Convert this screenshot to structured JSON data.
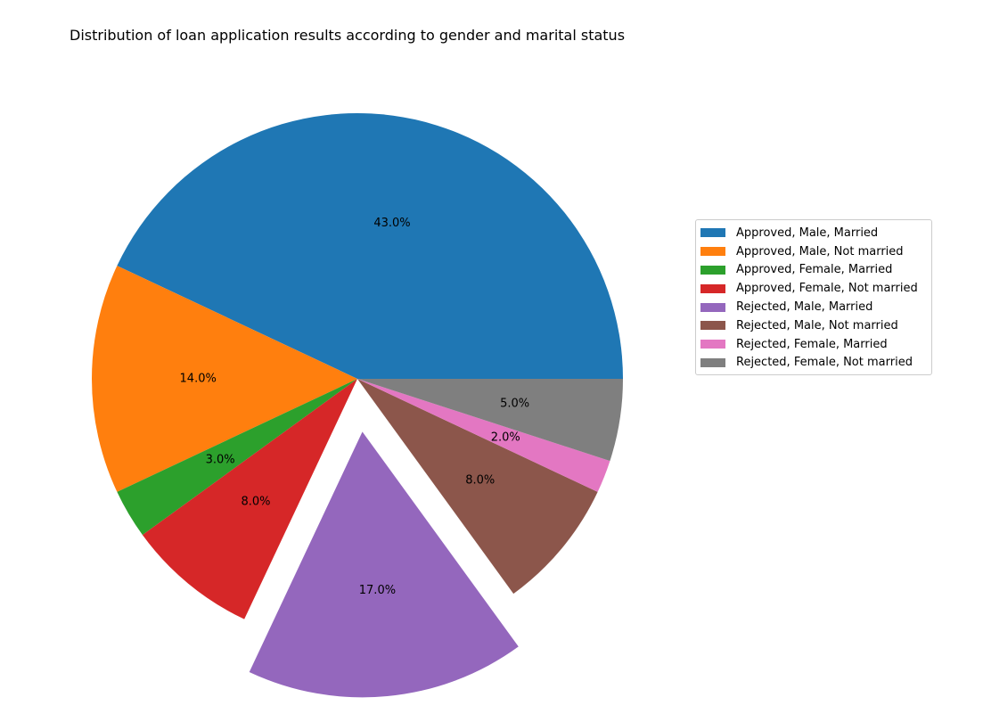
{
  "chart_data": {
    "type": "pie",
    "title": "Distribution of loan application results according to gender and marital status",
    "categories": [
      "Approved, Male, Married",
      "Approved, Male, Not married",
      "Approved, Female, Married",
      "Approved, Female, Not married",
      "Rejected, Male, Married",
      "Rejected, Male, Not married",
      "Rejected, Female, Married",
      "Rejected, Female, Not married"
    ],
    "values": [
      43,
      14,
      3,
      8,
      17,
      8,
      2,
      5
    ],
    "labels": [
      "43.0%",
      "14.0%",
      "3.0%",
      "8.0%",
      "17.0%",
      "8.0%",
      "2.0%",
      "5.0%"
    ],
    "colors": [
      "#1f77b4",
      "#ff7f0e",
      "#2ca02c",
      "#d62728",
      "#9467bd",
      "#8c564b",
      "#e377c2",
      "#7f7f7f"
    ],
    "exploded": [
      false,
      false,
      false,
      false,
      true,
      false,
      false,
      false
    ],
    "start_angle_deg": 0,
    "direction": "counterclockwise",
    "legend_position": "right"
  }
}
